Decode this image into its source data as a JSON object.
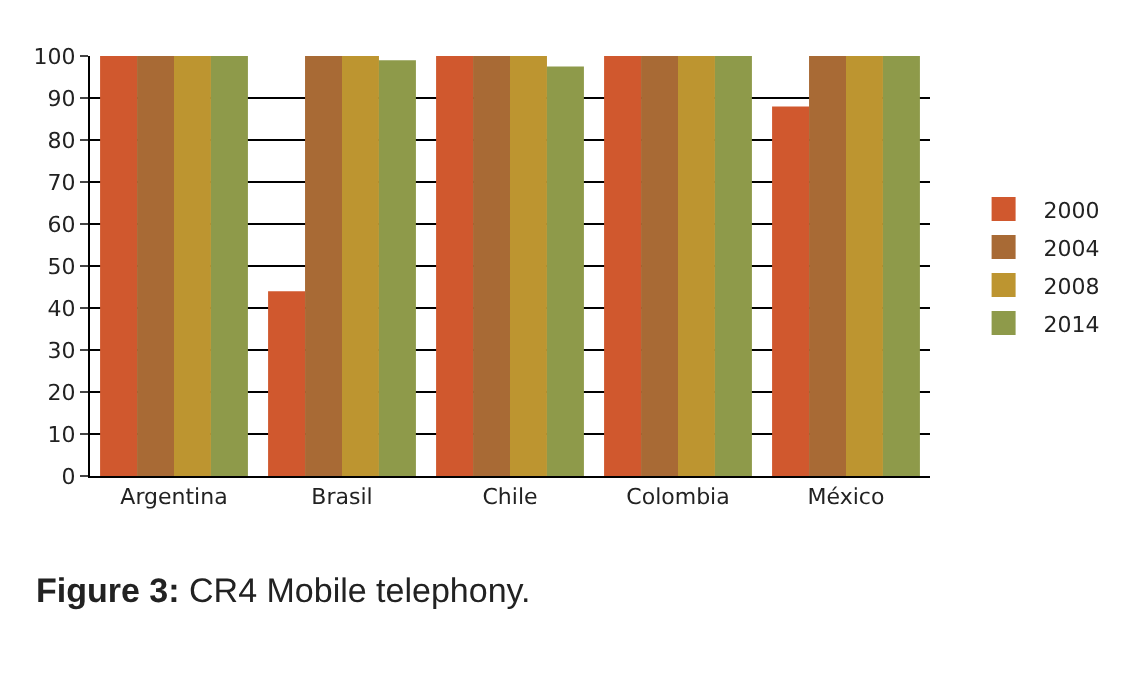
{
  "chart_data": {
    "type": "bar",
    "categories": [
      "Argentina",
      "Brasil",
      "Chile",
      "Colombia",
      "México"
    ],
    "series": [
      {
        "name": "2000",
        "color": "#d0582e",
        "values": [
          100,
          44,
          100,
          100,
          88
        ]
      },
      {
        "name": "2004",
        "color": "#a86a35",
        "values": [
          100,
          100,
          100,
          100,
          100
        ]
      },
      {
        "name": "2008",
        "color": "#bd9530",
        "values": [
          100,
          100,
          100,
          100,
          100
        ]
      },
      {
        "name": "2014",
        "color": "#8e9a4a",
        "values": [
          100,
          99,
          97.5,
          100,
          100
        ]
      }
    ],
    "ylim": [
      0,
      100
    ],
    "yticks": [
      0,
      10,
      20,
      30,
      40,
      50,
      60,
      70,
      80,
      90,
      100
    ],
    "grid": "y",
    "legend": "right",
    "annotations": [
      "Figure 3: CR4 Mobile telephony."
    ]
  }
}
